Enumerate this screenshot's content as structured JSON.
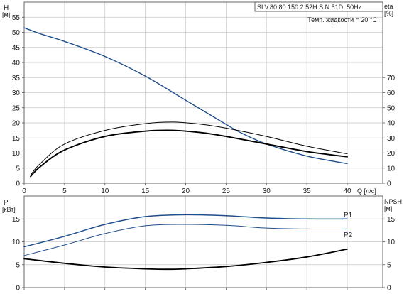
{
  "chart_data": [
    {
      "type": "line",
      "info_box": "SLV.80.80.150.2.52H.S.N.51D, 50Hz",
      "annotation": "Темп. жидкости = 20 °C",
      "x_axis": {
        "label": "Q [л/с]",
        "range": [
          0,
          40
        ],
        "ticks": [
          0,
          5,
          10,
          15,
          20,
          25,
          30,
          35,
          40
        ]
      },
      "y_left": {
        "label": "H",
        "unit": "[м]",
        "range": [
          0,
          60
        ],
        "ticks": [
          0,
          5,
          10,
          15,
          20,
          25,
          30,
          35,
          40,
          45,
          50,
          55
        ]
      },
      "y_right": {
        "label": "eta",
        "unit": "[%]",
        "range": [
          0,
          120
        ],
        "ticks": [
          0,
          10,
          20,
          30,
          40,
          50,
          60,
          70
        ]
      },
      "grid": true,
      "series": [
        {
          "axis": "left",
          "color": "#1f4e8c",
          "x": [
            0,
            2,
            5,
            10,
            15,
            20,
            25,
            27,
            30,
            35,
            40
          ],
          "y": [
            51.5,
            49.5,
            47,
            42,
            35.5,
            27.5,
            19.5,
            16.5,
            13,
            9,
            6.5
          ]
        },
        {
          "axis": "right",
          "color": "#000000",
          "x": [
            0.8,
            2,
            5,
            10,
            15,
            18.5,
            22,
            25,
            30,
            35,
            40
          ],
          "y": [
            4.5,
            11,
            22,
            31,
            34.5,
            35,
            33.5,
            31,
            26,
            21,
            17.5
          ]
        },
        {
          "axis": "right",
          "color": "#000000",
          "x": [
            0.8,
            2,
            5,
            10,
            15,
            18.5,
            22,
            25,
            30,
            35,
            40
          ],
          "y": [
            5.5,
            13,
            26,
            35,
            39.5,
            40.5,
            39,
            36.5,
            31,
            24.5,
            19.5
          ]
        }
      ]
    },
    {
      "type": "line",
      "x_axis": {
        "range": [
          0,
          40
        ],
        "ticks": [
          0,
          5,
          10,
          15,
          20,
          25,
          30,
          35,
          40
        ]
      },
      "y_left": {
        "label": "P",
        "unit": "[кВт]",
        "range": [
          0,
          20
        ],
        "ticks": [
          0,
          5,
          10,
          15
        ]
      },
      "y_right": {
        "label": "NPSH",
        "unit": "[м]",
        "range": [
          0,
          20
        ],
        "ticks": [
          0,
          5,
          10,
          15
        ]
      },
      "grid": true,
      "series": [
        {
          "name": "P1",
          "axis": "left",
          "color": "#1f4e8c",
          "x": [
            0,
            5,
            10,
            15,
            20,
            25,
            30,
            35,
            40
          ],
          "y": [
            8.9,
            11.2,
            13.8,
            15.5,
            15.9,
            15.7,
            15.2,
            15.0,
            15.0
          ]
        },
        {
          "name": "P2",
          "axis": "left",
          "color": "#1f4e8c",
          "x": [
            0,
            5,
            10,
            15,
            20,
            25,
            30,
            35,
            40
          ],
          "y": [
            7.0,
            9.3,
            11.8,
            13.5,
            13.8,
            13.6,
            13.0,
            12.8,
            12.8
          ]
        },
        {
          "axis": "right",
          "color": "#000000",
          "x": [
            0,
            5,
            10,
            15,
            18,
            20,
            25,
            30,
            35,
            40
          ],
          "y": [
            6.3,
            5.3,
            4.5,
            4.1,
            4.0,
            4.1,
            4.6,
            5.5,
            6.7,
            8.4
          ]
        }
      ]
    }
  ]
}
